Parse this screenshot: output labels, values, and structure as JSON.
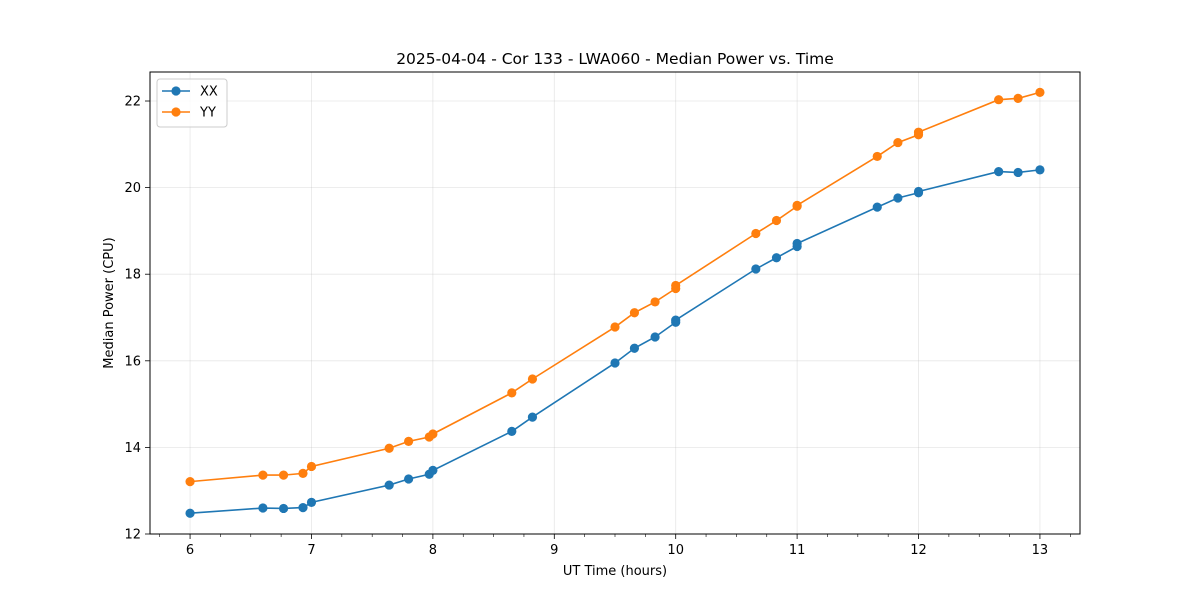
{
  "chart_data": {
    "type": "line",
    "title": "2025-04-04 - Cor 133 - LWA060 - Median Power vs. Time",
    "xlabel": "UT Time (hours)",
    "ylabel": "Median Power (CPU)",
    "xlim": [
      5.67,
      13.33
    ],
    "ylim": [
      12,
      22.67
    ],
    "xticks": [
      6,
      7,
      8,
      9,
      10,
      11,
      12,
      13
    ],
    "yticks": [
      12,
      14,
      16,
      18,
      20,
      22
    ],
    "grid": true,
    "legend_position": "top-left",
    "series": [
      {
        "name": "XX",
        "color": "#1f77b4",
        "x": [
          6.0,
          6.6,
          6.77,
          6.93,
          7.0,
          7.64,
          7.8,
          7.97,
          8.0,
          8.65,
          8.82,
          9.5,
          9.66,
          9.83,
          10.0,
          10.0,
          10.66,
          10.83,
          11.0,
          11.0,
          11.66,
          11.83,
          12.0,
          12.0,
          12.66,
          12.82,
          13.0
        ],
        "y": [
          12.48,
          12.6,
          12.59,
          12.61,
          12.73,
          13.13,
          13.27,
          13.38,
          13.47,
          14.37,
          14.7,
          15.95,
          16.29,
          16.55,
          16.89,
          16.94,
          18.12,
          18.38,
          18.64,
          18.71,
          19.55,
          19.76,
          19.88,
          19.91,
          20.37,
          20.35,
          20.41
        ]
      },
      {
        "name": "YY",
        "color": "#ff7f0e",
        "x": [
          6.0,
          6.6,
          6.77,
          6.93,
          7.0,
          7.64,
          7.8,
          7.97,
          8.0,
          8.65,
          8.82,
          9.5,
          9.66,
          9.83,
          10.0,
          10.0,
          10.66,
          10.83,
          11.0,
          11.0,
          11.66,
          11.83,
          12.0,
          12.0,
          12.66,
          12.82,
          13.0
        ],
        "y": [
          13.21,
          13.36,
          13.36,
          13.4,
          13.56,
          13.98,
          14.14,
          14.24,
          14.31,
          15.26,
          15.58,
          16.78,
          17.11,
          17.36,
          17.67,
          17.74,
          18.94,
          19.24,
          19.57,
          19.59,
          20.72,
          21.04,
          21.22,
          21.28,
          22.03,
          22.06,
          22.2
        ]
      }
    ]
  }
}
